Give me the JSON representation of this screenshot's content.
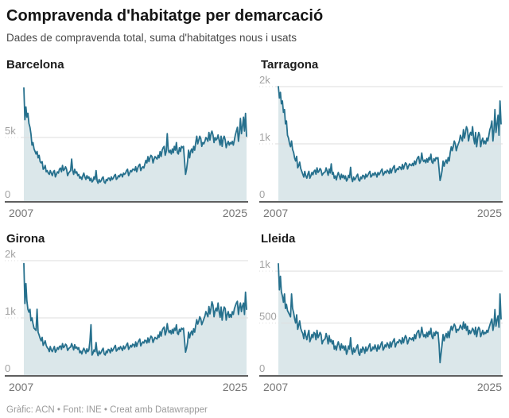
{
  "header": {
    "title": "Compravenda d'habitatge per demarcació",
    "subtitle": "Dades de compravenda total, suma d'habitatges nous i usats"
  },
  "footer": {
    "text": "Gràfic: ACN • Font: INE • Creat amb Datawrapper"
  },
  "style": {
    "line_color": "#26708d",
    "area_color": "#dbe7ea",
    "grid_color": "#dedede",
    "axis_color": "#5f5f5f",
    "tick_label_color": "#a2a2a2",
    "x_label_color": "#757575"
  },
  "chart_data": [
    {
      "type": "line",
      "title": "Barcelona",
      "interval": "monthly",
      "x_range_years": [
        2007,
        2025
      ],
      "x_ticks": [
        "2007",
        "2025"
      ],
      "ydomain": [
        0,
        9000
      ],
      "yticks": [
        {
          "value": 0,
          "label": "0"
        },
        {
          "value": 5000,
          "label": "5k"
        }
      ],
      "values": [
        8900,
        6400,
        7400,
        6600,
        6900,
        6100,
        5800,
        5300,
        4400,
        4600,
        4100,
        3900,
        3700,
        3900,
        3400,
        3600,
        3100,
        3000,
        3100,
        2500,
        2600,
        2800,
        2300,
        2400,
        2200,
        2100,
        2400,
        2200,
        2000,
        2300,
        2400,
        1900,
        2100,
        2300,
        2200,
        2500,
        2600,
        2300,
        2800,
        2400,
        2500,
        2700,
        2500,
        2000,
        2200,
        2300,
        2400,
        3300,
        2400,
        2100,
        2500,
        2200,
        2300,
        2000,
        2100,
        1800,
        1900,
        1700,
        2000,
        2200,
        1900,
        1700,
        2000,
        1800,
        1900,
        1600,
        1800,
        1500,
        1600,
        1900,
        1700,
        2400,
        1600,
        1400,
        1700,
        1500,
        1600,
        1800,
        1900,
        1500,
        1400,
        1700,
        1600,
        1800,
        1800,
        1600,
        1900,
        1700,
        1800,
        2000,
        2100,
        1700,
        1800,
        2000,
        1900,
        2100,
        2100,
        1900,
        2200,
        2100,
        2200,
        2400,
        2500,
        2000,
        2200,
        2400,
        2300,
        2500,
        2500,
        2400,
        2700,
        2300,
        2600,
        2800,
        2900,
        2400,
        2600,
        2700,
        2600,
        2900,
        3200,
        3000,
        3500,
        3100,
        3400,
        3600,
        3500,
        3000,
        3300,
        3500,
        3400,
        3300,
        3600,
        3400,
        3900,
        3500,
        4000,
        4200,
        4300,
        3600,
        3900,
        5300,
        4000,
        3800,
        4000,
        3700,
        4100,
        3800,
        4300,
        4000,
        4600,
        3800,
        3700,
        4200,
        3900,
        4300,
        4200,
        4300,
        3200,
        2100,
        2500,
        3100,
        4000,
        3400,
        3900,
        4100,
        3800,
        4300,
        4000,
        4600,
        5100,
        4500,
        4800,
        5100,
        4900,
        4300,
        4600,
        4500,
        4700,
        5000,
        4900,
        4700,
        5400,
        4800,
        5300,
        5500,
        5200,
        4600,
        5000,
        4800,
        4900,
        5200,
        4800,
        4400,
        5100,
        4300,
        4900,
        5100,
        4800,
        4200,
        4500,
        4700,
        4400,
        4600,
        4500,
        4700,
        4400,
        4800,
        5200,
        5500,
        5800,
        4700,
        5400,
        6500,
        5300,
        5900,
        6600,
        5500,
        6900,
        5100
      ]
    },
    {
      "type": "line",
      "title": "Tarragona",
      "interval": "monthly",
      "x_range_years": [
        2007,
        2025
      ],
      "x_ticks": [
        "2007",
        "2025"
      ],
      "ydomain": [
        0,
        2000
      ],
      "yticks": [
        {
          "value": 0,
          "label": "0"
        },
        {
          "value": 1000,
          "label": "1k"
        },
        {
          "value": 2000,
          "label": "2k"
        }
      ],
      "values": [
        2000,
        1800,
        1900,
        1700,
        1750,
        1550,
        1600,
        1350,
        1400,
        1150,
        1100,
        1000,
        950,
        1050,
        900,
        850,
        750,
        700,
        780,
        580,
        620,
        680,
        570,
        520,
        470,
        420,
        520,
        440,
        400,
        470,
        520,
        400,
        440,
        500,
        460,
        520,
        540,
        470,
        580,
        500,
        520,
        570,
        540,
        450,
        480,
        500,
        510,
        580,
        520,
        450,
        560,
        490,
        650,
        470,
        500,
        400,
        440,
        370,
        450,
        500,
        440,
        380,
        470,
        410,
        450,
        390,
        440,
        350,
        380,
        450,
        410,
        590,
        400,
        340,
        420,
        370,
        400,
        440,
        470,
        370,
        350,
        420,
        390,
        450,
        440,
        390,
        470,
        420,
        450,
        490,
        520,
        420,
        440,
        480,
        450,
        500,
        470,
        420,
        500,
        460,
        490,
        530,
        560,
        450,
        480,
        520,
        490,
        540,
        520,
        480,
        570,
        490,
        550,
        590,
        620,
        500,
        540,
        570,
        550,
        600,
        590,
        550,
        640,
        560,
        620,
        670,
        650,
        560,
        610,
        650,
        630,
        620,
        660,
        620,
        700,
        640,
        720,
        760,
        780,
        660,
        700,
        840,
        720,
        690,
        720,
        670,
        740,
        680,
        760,
        720,
        820,
        680,
        660,
        740,
        700,
        760,
        740,
        760,
        570,
        360,
        430,
        530,
        700,
        610,
        680,
        720,
        660,
        760,
        700,
        850,
        950,
        880,
        950,
        1050,
        1000,
        880,
        950,
        1000,
        1050,
        1150,
        1100,
        1050,
        1250,
        1100,
        1200,
        1300,
        1250,
        1050,
        1150,
        1200,
        1150,
        1300,
        1100,
        1000,
        1200,
        950,
        1100,
        1200,
        1150,
        950,
        1050,
        1100,
        1000,
        1050,
        1000,
        1100,
        1050,
        1150,
        1250,
        1300,
        1400,
        1050,
        1250,
        1600,
        1200,
        1350,
        1500,
        1150,
        1750,
        1350
      ]
    },
    {
      "type": "line",
      "title": "Girona",
      "interval": "monthly",
      "x_range_years": [
        2007,
        2025
      ],
      "x_ticks": [
        "2007",
        "2025"
      ],
      "ydomain": [
        0,
        2000
      ],
      "yticks": [
        {
          "value": 0,
          "label": "0"
        },
        {
          "value": 1000,
          "label": "1k"
        },
        {
          "value": 2000,
          "label": "2k"
        }
      ],
      "values": [
        1950,
        1250,
        1600,
        1300,
        1150,
        1100,
        1150,
        950,
        1000,
        900,
        820,
        800,
        780,
        1150,
        750,
        700,
        640,
        600,
        660,
        520,
        560,
        600,
        520,
        480,
        460,
        410,
        500,
        440,
        410,
        460,
        500,
        400,
        430,
        480,
        450,
        500,
        510,
        450,
        550,
        480,
        500,
        540,
        520,
        430,
        460,
        480,
        490,
        550,
        500,
        440,
        530,
        470,
        490,
        450,
        480,
        390,
        420,
        370,
        430,
        470,
        430,
        380,
        460,
        410,
        440,
        600,
        880,
        350,
        380,
        440,
        410,
        570,
        400,
        340,
        420,
        370,
        400,
        440,
        470,
        370,
        350,
        420,
        390,
        450,
        440,
        390,
        470,
        420,
        450,
        490,
        520,
        420,
        440,
        480,
        450,
        500,
        470,
        430,
        510,
        460,
        490,
        530,
        560,
        450,
        480,
        520,
        490,
        540,
        530,
        490,
        580,
        500,
        560,
        600,
        630,
        510,
        550,
        580,
        560,
        610,
        600,
        560,
        650,
        570,
        630,
        680,
        660,
        570,
        620,
        660,
        640,
        630,
        700,
        660,
        760,
        680,
        780,
        820,
        840,
        700,
        760,
        900,
        780,
        740,
        780,
        720,
        800,
        730,
        820,
        780,
        880,
        730,
        710,
        800,
        760,
        820,
        800,
        820,
        610,
        400,
        470,
        570,
        750,
        650,
        730,
        770,
        700,
        810,
        750,
        870,
        970,
        890,
        940,
        1020,
        980,
        880,
        930,
        980,
        1030,
        1110,
        1070,
        1020,
        1200,
        1070,
        1170,
        1280,
        1220,
        1020,
        1120,
        1170,
        1120,
        1260,
        1110,
        1010,
        1190,
        960,
        1110,
        1190,
        1160,
        960,
        1060,
        1110,
        1010,
        1060,
        1010,
        1110,
        1060,
        1160,
        1210,
        1260,
        1290,
        1060,
        1190,
        1260,
        1110,
        1210,
        1260,
        1060,
        1450,
        1150
      ]
    },
    {
      "type": "line",
      "title": "Lleida",
      "interval": "monthly",
      "x_range_years": [
        2007,
        2025
      ],
      "x_ticks": [
        "2007",
        "2025"
      ],
      "ydomain": [
        0,
        1100
      ],
      "yticks": [
        {
          "value": 0,
          "label": "0"
        },
        {
          "value": 500,
          "label": "500"
        },
        {
          "value": 1000,
          "label": "1k"
        }
      ],
      "values": [
        1070,
        820,
        950,
        800,
        760,
        700,
        780,
        640,
        680,
        620,
        600,
        580,
        560,
        780,
        640,
        600,
        540,
        500,
        580,
        440,
        480,
        520,
        450,
        420,
        400,
        350,
        430,
        380,
        340,
        390,
        430,
        320,
        350,
        390,
        360,
        410,
        400,
        340,
        430,
        360,
        380,
        410,
        390,
        300,
        330,
        340,
        350,
        400,
        360,
        300,
        380,
        320,
        340,
        300,
        330,
        250,
        280,
        240,
        290,
        320,
        280,
        240,
        300,
        260,
        280,
        240,
        280,
        200,
        230,
        280,
        250,
        360,
        240,
        200,
        260,
        220,
        240,
        270,
        290,
        210,
        190,
        250,
        220,
        270,
        250,
        210,
        270,
        230,
        250,
        280,
        300,
        230,
        240,
        270,
        250,
        290,
        260,
        230,
        290,
        250,
        270,
        300,
        320,
        240,
        260,
        290,
        270,
        310,
        290,
        260,
        320,
        270,
        310,
        330,
        350,
        270,
        300,
        320,
        310,
        340,
        330,
        300,
        360,
        310,
        350,
        380,
        360,
        300,
        330,
        360,
        350,
        340,
        360,
        330,
        390,
        350,
        400,
        420,
        430,
        360,
        390,
        460,
        400,
        370,
        390,
        360,
        410,
        370,
        420,
        390,
        450,
        370,
        350,
        410,
        380,
        420,
        400,
        410,
        300,
        120,
        210,
        290,
        390,
        330,
        370,
        400,
        360,
        420,
        360,
        430,
        470,
        430,
        460,
        490,
        470,
        410,
        440,
        430,
        450,
        480,
        460,
        440,
        510,
        450,
        490,
        430,
        470,
        390,
        430,
        400,
        420,
        450,
        430,
        390,
        460,
        370,
        430,
        460,
        440,
        370,
        400,
        430,
        390,
        410,
        400,
        430,
        410,
        450,
        480,
        510,
        540,
        430,
        490,
        630,
        470,
        530,
        570,
        460,
        780,
        540
      ]
    }
  ]
}
